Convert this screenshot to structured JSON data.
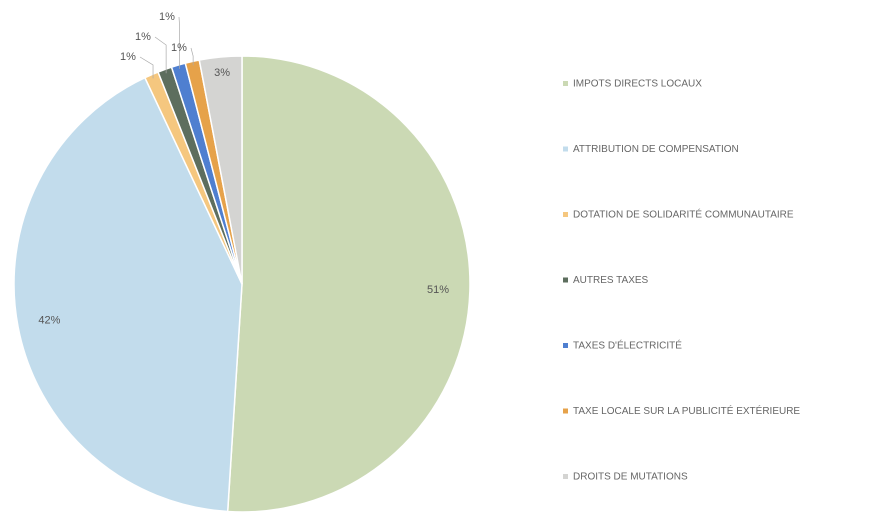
{
  "chart_data": {
    "type": "pie",
    "categories": [
      "IMPOTS DIRECTS LOCAUX",
      "ATTRIBUTION DE COMPENSATION",
      "DOTATION DE SOLIDARITÉ COMMUNAUTAIRE",
      "AUTRES TAXES",
      "TAXES D'ÉLECTRICITÉ",
      "TAXE LOCALE SUR LA PUBLICITÉ EXTÉRIEURE",
      "DROITS DE MUTATIONS"
    ],
    "values": [
      51,
      42,
      1,
      1,
      1,
      1,
      3
    ],
    "value_labels": [
      "51%",
      "42%",
      "1%",
      "1%",
      "1%",
      "1%",
      "3%"
    ],
    "colors": [
      "#cbd9b4",
      "#c2dcec",
      "#f5c77f",
      "#5d6e5e",
      "#4f7fd0",
      "#e6a24a",
      "#d4d4d2"
    ],
    "legend": "right"
  }
}
